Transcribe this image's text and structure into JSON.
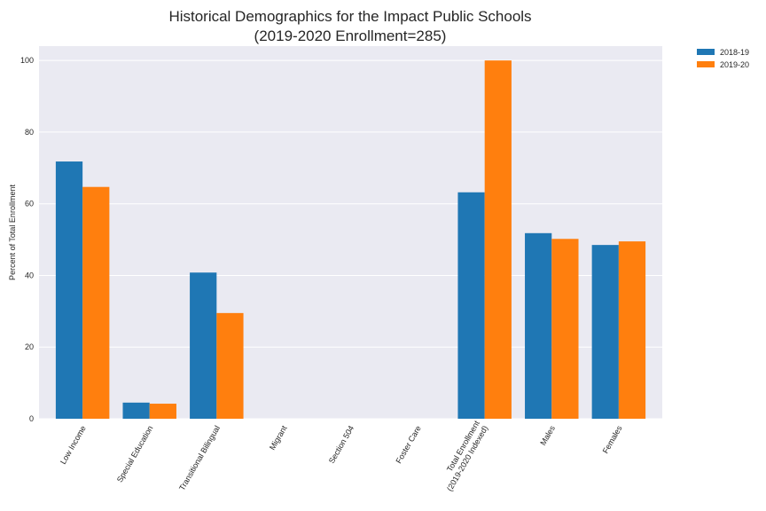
{
  "chart_data": {
    "type": "bar",
    "title": "Historical Demographics for the Impact Public Schools",
    "subtitle": "(2019-2020 Enrollment=285)",
    "xlabel": "",
    "ylabel": "Percent of Total Enrollment",
    "ylim": [
      0,
      104
    ],
    "yticks": [
      0,
      20,
      40,
      60,
      80,
      100
    ],
    "grid": true,
    "legend_placement": "outside-top-right",
    "categories": [
      "Low Income",
      "Special Education",
      "Transitional Bilingual",
      "Migrant",
      "Section 504",
      "Foster Care",
      "Total Enrollment\n(2019-2020 Indexed)",
      "Males",
      "Females"
    ],
    "series": [
      {
        "name": "2018-19",
        "color": "#1f77b4",
        "values": [
          71.8,
          4.5,
          40.8,
          0,
          0,
          0,
          63.2,
          51.8,
          48.5
        ]
      },
      {
        "name": "2019-20",
        "color": "#ff7f0e",
        "values": [
          64.7,
          4.2,
          29.5,
          0,
          0,
          0,
          100,
          50.2,
          49.5
        ]
      }
    ],
    "background_color": "#eaeaf2"
  }
}
